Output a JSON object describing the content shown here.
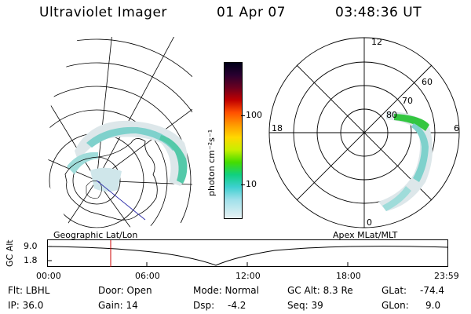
{
  "header": {
    "instrument": "Ultraviolet Imager",
    "date": "01 Apr 07",
    "time": "03:48:36 UT"
  },
  "colorbar": {
    "unit_label": "photon cm⁻²s⁻¹",
    "ticks": [
      "100",
      "10"
    ]
  },
  "polar_plot": {
    "mlt_labels": [
      "12",
      "18",
      "6",
      "0"
    ],
    "lat_labels": [
      "60",
      "70",
      "80"
    ]
  },
  "projections": {
    "left": "Geographic Lat/Lon",
    "right": "Apex  MLat/MLT"
  },
  "orbit": {
    "axis_label": "GC Alt",
    "y_ticks": [
      "9.0",
      "1.8"
    ],
    "x_ticks": [
      "00:00",
      "06:00",
      "12:00",
      "18:00",
      "23:59"
    ]
  },
  "info": {
    "flt": "Flt: LBHL",
    "ip": "IP: 36.0",
    "door": "Door: Open",
    "gain": "Gain: 14",
    "mode": "Mode: Normal",
    "dsp_label": "Dsp:",
    "dsp_value": "-4.2",
    "gc_alt": "GC Alt: 8.3 Re",
    "seq": "Seq: 39",
    "glat_label": "GLat:",
    "glat_value": "-74.4",
    "glon_label": "GLon:",
    "glon_value": "9.0"
  },
  "colors": {
    "foreground": "#000000",
    "marker": "#cc0000",
    "coast": "#000000",
    "track": "#2a2aa8"
  }
}
